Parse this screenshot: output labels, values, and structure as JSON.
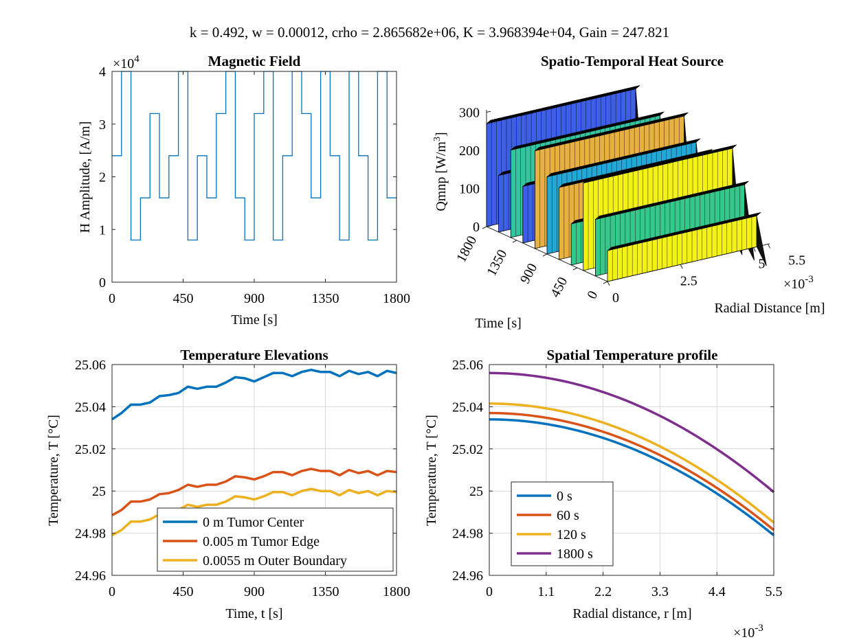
{
  "suptitle": "k = 0.492, w = 0.00012, crho = 2.865682e+06, K = 3.968394e+04, Gain = 247.821",
  "chart_data": [
    {
      "type": "line",
      "title": "Magnetic Field",
      "xlabel": "Time [s]",
      "ylabel": "H Amplitude, [A/m]",
      "xlim": [
        0,
        1800
      ],
      "ylim": [
        0,
        40000
      ],
      "xticks": [
        "0",
        "450",
        "900",
        "1350",
        "1800"
      ],
      "yticks": [
        "0",
        "1",
        "2",
        "3",
        "4"
      ],
      "y_exponent": "×10",
      "y_exponent_power": "4",
      "grid": false,
      "color": "#0072BD",
      "series": [
        {
          "steps": [
            [
              0,
              24000
            ],
            [
              60,
              40000
            ],
            [
              120,
              8000
            ],
            [
              180,
              16000
            ],
            [
              240,
              32000
            ],
            [
              300,
              16000
            ],
            [
              360,
              24000
            ],
            [
              420,
              40000
            ],
            [
              480,
              8000
            ],
            [
              540,
              24000
            ],
            [
              600,
              16000
            ],
            [
              660,
              32000
            ],
            [
              720,
              40000
            ],
            [
              780,
              16000
            ],
            [
              840,
              8000
            ],
            [
              900,
              32000
            ],
            [
              960,
              40000
            ],
            [
              1020,
              8000
            ],
            [
              1080,
              24000
            ],
            [
              1140,
              40000
            ],
            [
              1200,
              32000
            ],
            [
              1260,
              16000
            ],
            [
              1320,
              40000
            ],
            [
              1380,
              24000
            ],
            [
              1440,
              8000
            ],
            [
              1500,
              40000
            ],
            [
              1560,
              24000
            ],
            [
              1620,
              8000
            ],
            [
              1680,
              40000
            ],
            [
              1740,
              16000
            ]
          ],
          "x_end": 1800
        }
      ]
    },
    {
      "type": "bar3d",
      "title": "Spatio-Temporal Heat Source",
      "xlabel": "Radial Distance [m]",
      "ylabel": "Time [s]",
      "zlabel": "Qmnp [W/m",
      "zlabel_sup": "3",
      "zlabel_end": "]",
      "xticks": [
        "0",
        "2.5",
        "5",
        "5.5"
      ],
      "x_exponent": "×10",
      "x_exponent_power": "-3",
      "yticks": [
        "0",
        "450",
        "900",
        "1350",
        "1800"
      ],
      "zticks": [
        "0",
        "100",
        "200",
        "300"
      ],
      "zlim": [
        0,
        300
      ]
    },
    {
      "type": "line",
      "title": "Temperature Elevations",
      "xlabel": "Time, t [s]",
      "ylabel": "Temperature, T [°C]",
      "xlim": [
        0,
        1800
      ],
      "ylim": [
        24.96,
        25.06
      ],
      "xticks": [
        "0",
        "450",
        "900",
        "1350",
        "1800"
      ],
      "yticks": [
        "24.96",
        "24.98",
        "25",
        "25.02",
        "25.04",
        "25.06"
      ],
      "grid": true,
      "legend_position": "bottom-right",
      "x": [
        0,
        60,
        120,
        180,
        240,
        300,
        360,
        420,
        480,
        540,
        600,
        660,
        720,
        780,
        840,
        900,
        960,
        1020,
        1080,
        1140,
        1200,
        1260,
        1320,
        1380,
        1440,
        1500,
        1560,
        1620,
        1680,
        1740,
        1800
      ],
      "series": [
        {
          "name": "0 m Tumor Center",
          "color": "#0072BD",
          "values": [
            25.034,
            25.037,
            25.041,
            25.041,
            25.042,
            25.045,
            25.0455,
            25.0465,
            25.0495,
            25.0485,
            25.0495,
            25.0495,
            25.0515,
            25.054,
            25.0535,
            25.052,
            25.054,
            25.056,
            25.056,
            25.0545,
            25.0565,
            25.0575,
            25.0565,
            25.0565,
            25.0545,
            25.057,
            25.0555,
            25.0565,
            25.0545,
            25.057,
            25.056
          ]
        },
        {
          "name": "0.005 m Tumor Edge",
          "color": "#D95319",
          "values": [
            24.9885,
            24.991,
            24.995,
            24.995,
            24.996,
            24.9985,
            24.999,
            25.0005,
            25.003,
            25.002,
            25.003,
            25.003,
            25.0045,
            25.007,
            25.0065,
            25.0055,
            25.007,
            25.009,
            25.009,
            25.0075,
            25.0095,
            25.0105,
            25.0095,
            25.0095,
            25.0075,
            25.01,
            25.0085,
            25.0095,
            25.0075,
            25.0095,
            25.009
          ]
        },
        {
          "name": "0.0055 m Outer Boundary",
          "color": "#EDB120",
          "values": [
            24.979,
            24.9815,
            24.9855,
            24.9855,
            24.9865,
            24.989,
            24.9895,
            24.991,
            24.9935,
            24.9925,
            24.9935,
            24.9935,
            24.995,
            24.9975,
            24.997,
            24.996,
            24.9975,
            24.9995,
            24.9995,
            24.998,
            25.0,
            25.001,
            25.0,
            25.0,
            24.998,
            25.0005,
            24.999,
            25.0,
            24.998,
            25.0,
            24.9995
          ]
        }
      ]
    },
    {
      "type": "line",
      "title": "Spatial Temperature profile",
      "xlabel": "Radial distance, r [m]",
      "ylabel": "Temperature, T [°C]",
      "xlim": [
        0,
        0.0055
      ],
      "ylim": [
        24.96,
        25.06
      ],
      "xticks": [
        "0",
        "1.1",
        "2.2",
        "3.3",
        "4.4",
        "5.5"
      ],
      "x_exponent": "×10",
      "x_exponent_power": "-3",
      "yticks": [
        "24.96",
        "24.98",
        "25",
        "25.02",
        "25.04",
        "25.06"
      ],
      "grid": true,
      "legend_position": "bottom-left",
      "series": [
        {
          "name": "0 s",
          "color": "#0072BD",
          "center": 25.034,
          "edge": 24.979
        },
        {
          "name": "60 s",
          "color": "#D95319",
          "center": 25.037,
          "edge": 24.9815
        },
        {
          "name": "120 s",
          "color": "#EDB120",
          "center": 25.0415,
          "edge": 24.985
        },
        {
          "name": "1800 s",
          "color": "#7E2F8E",
          "center": 25.056,
          "edge": 24.9995
        }
      ]
    }
  ]
}
